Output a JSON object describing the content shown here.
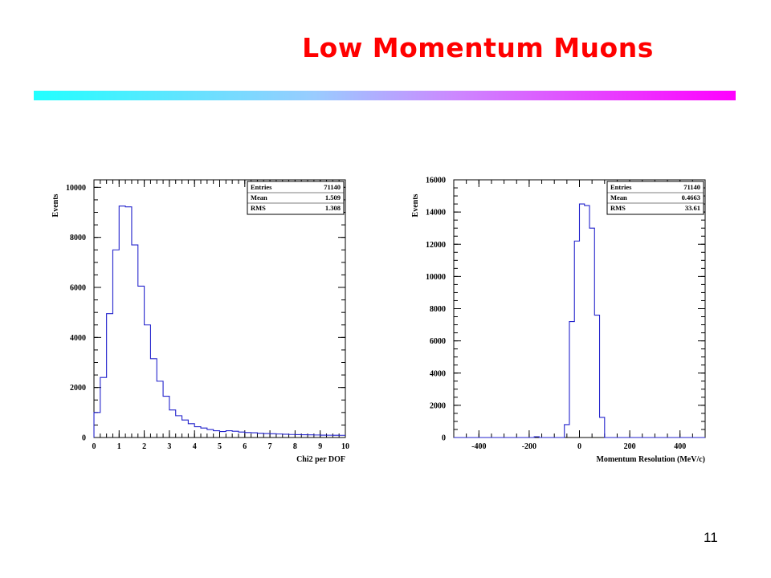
{
  "slide": {
    "title": "Low Momentum Muons",
    "page_number": "11",
    "colors": {
      "title": "#ff0000",
      "histogram": "#2222cc",
      "bar_start": "#22ffff",
      "bar_end": "#ff00ff"
    }
  },
  "chart_data": [
    {
      "type": "histogram",
      "xlabel": "Chi2 per DOF",
      "ylabel": "Events",
      "xlim": [
        0,
        10
      ],
      "ylim": [
        0,
        10300
      ],
      "xticks": [
        0,
        1,
        2,
        3,
        4,
        5,
        6,
        7,
        8,
        9,
        10
      ],
      "yticks": [
        0,
        2000,
        4000,
        6000,
        8000,
        10000
      ],
      "bin_width": 0.25,
      "bin_start": 0,
      "values": [
        1000,
        2400,
        4950,
        7500,
        9250,
        9220,
        7700,
        6050,
        4500,
        3150,
        2250,
        1650,
        1100,
        870,
        700,
        550,
        430,
        380,
        320,
        270,
        240,
        270,
        250,
        220,
        200,
        190,
        170,
        160,
        150,
        140,
        130,
        120,
        115,
        110,
        105,
        100,
        95,
        92,
        90,
        88
      ],
      "stats": [
        {
          "label": "Entries",
          "value": "71140"
        },
        {
          "label": "Mean",
          "value": "1.509"
        },
        {
          "label": "RMS",
          "value": "1.308"
        }
      ]
    },
    {
      "type": "histogram",
      "xlabel": "Momentum Resolution (MeV/c)",
      "ylabel": "Events",
      "xlim": [
        -500,
        500
      ],
      "ylim": [
        0,
        16000
      ],
      "xticks": [
        -400,
        -200,
        0,
        200,
        400
      ],
      "yticks": [
        0,
        2000,
        4000,
        6000,
        8000,
        10000,
        12000,
        14000,
        16000
      ],
      "bin_width": 20,
      "bin_start": -500,
      "values": [
        0,
        0,
        0,
        0,
        0,
        0,
        0,
        0,
        0,
        0,
        0,
        0,
        0,
        0,
        0,
        0,
        50,
        0,
        0,
        0,
        0,
        0,
        800,
        7200,
        12200,
        14500,
        14400,
        13000,
        7600,
        1250,
        0,
        0,
        0,
        0,
        0,
        0,
        0,
        0,
        0,
        0,
        0,
        0,
        0,
        0,
        0,
        0,
        0,
        0,
        0,
        0
      ],
      "stats": [
        {
          "label": "Entries",
          "value": "71140"
        },
        {
          "label": "Mean",
          "value": "0.4663"
        },
        {
          "label": "RMS",
          "value": "33.61"
        }
      ]
    }
  ]
}
